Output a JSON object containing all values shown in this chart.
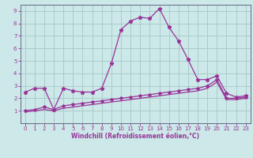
{
  "xlabel": "Windchill (Refroidissement éolien,°C)",
  "background_color": "#cce8e8",
  "grid_color": "#aacccc",
  "line_color": "#993399",
  "spine_color": "#666688",
  "xlim": [
    -0.5,
    23.5
  ],
  "ylim": [
    0,
    9.5
  ],
  "xticks": [
    0,
    1,
    2,
    3,
    4,
    5,
    6,
    7,
    8,
    9,
    10,
    11,
    12,
    13,
    14,
    15,
    16,
    17,
    18,
    19,
    20,
    21,
    22,
    23
  ],
  "yticks": [
    1,
    2,
    3,
    4,
    5,
    6,
    7,
    8,
    9
  ],
  "series1_x": [
    0,
    1,
    2,
    3,
    4,
    5,
    6,
    7,
    8,
    9,
    10,
    11,
    12,
    13,
    14,
    15,
    16,
    17,
    18,
    19,
    20,
    21,
    22,
    23
  ],
  "series1_y": [
    2.5,
    2.8,
    2.8,
    1.1,
    2.8,
    2.6,
    2.5,
    2.5,
    2.8,
    4.8,
    7.5,
    8.2,
    8.5,
    8.4,
    9.2,
    7.7,
    6.6,
    5.1,
    3.5,
    3.5,
    3.8,
    2.4,
    2.1,
    2.2
  ],
  "series2_x": [
    0,
    1,
    2,
    3,
    4,
    5,
    6,
    7,
    8,
    9,
    10,
    11,
    12,
    13,
    14,
    15,
    16,
    17,
    18,
    19,
    20,
    21,
    22,
    23
  ],
  "series2_y": [
    1.0,
    1.1,
    1.3,
    1.1,
    1.4,
    1.5,
    1.6,
    1.7,
    1.8,
    1.9,
    2.0,
    2.1,
    2.2,
    2.3,
    2.4,
    2.5,
    2.6,
    2.7,
    2.8,
    3.0,
    3.5,
    2.0,
    2.0,
    2.1
  ],
  "series3_x": [
    0,
    1,
    2,
    3,
    4,
    5,
    6,
    7,
    8,
    9,
    10,
    11,
    12,
    13,
    14,
    15,
    16,
    17,
    18,
    19,
    20,
    21,
    22,
    23
  ],
  "series3_y": [
    0.9,
    1.0,
    1.1,
    1.0,
    1.2,
    1.3,
    1.4,
    1.5,
    1.6,
    1.7,
    1.8,
    1.9,
    2.0,
    2.1,
    2.2,
    2.3,
    2.4,
    2.5,
    2.6,
    2.8,
    3.3,
    1.9,
    1.9,
    2.0
  ],
  "tick_labelsize": 5,
  "xlabel_fontsize": 5.5
}
